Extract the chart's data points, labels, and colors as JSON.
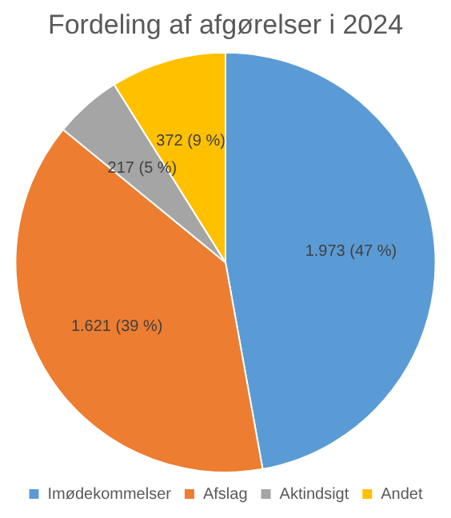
{
  "chart_data": {
    "type": "pie",
    "title": "Fordeling af afgørelser i 2024",
    "categories": [
      "Imødekommelser",
      "Afslag",
      "Aktindsigt",
      "Andet"
    ],
    "values": [
      1973,
      1621,
      217,
      372
    ],
    "colors": [
      "#5b9bd5",
      "#ed7d31",
      "#a5a5a5",
      "#ffc000"
    ],
    "value_labels": [
      "1.973 (47 %)",
      "1.621 (39 %)",
      "217 (5 %)",
      "372 (9 %)"
    ],
    "legend": "bottom"
  }
}
